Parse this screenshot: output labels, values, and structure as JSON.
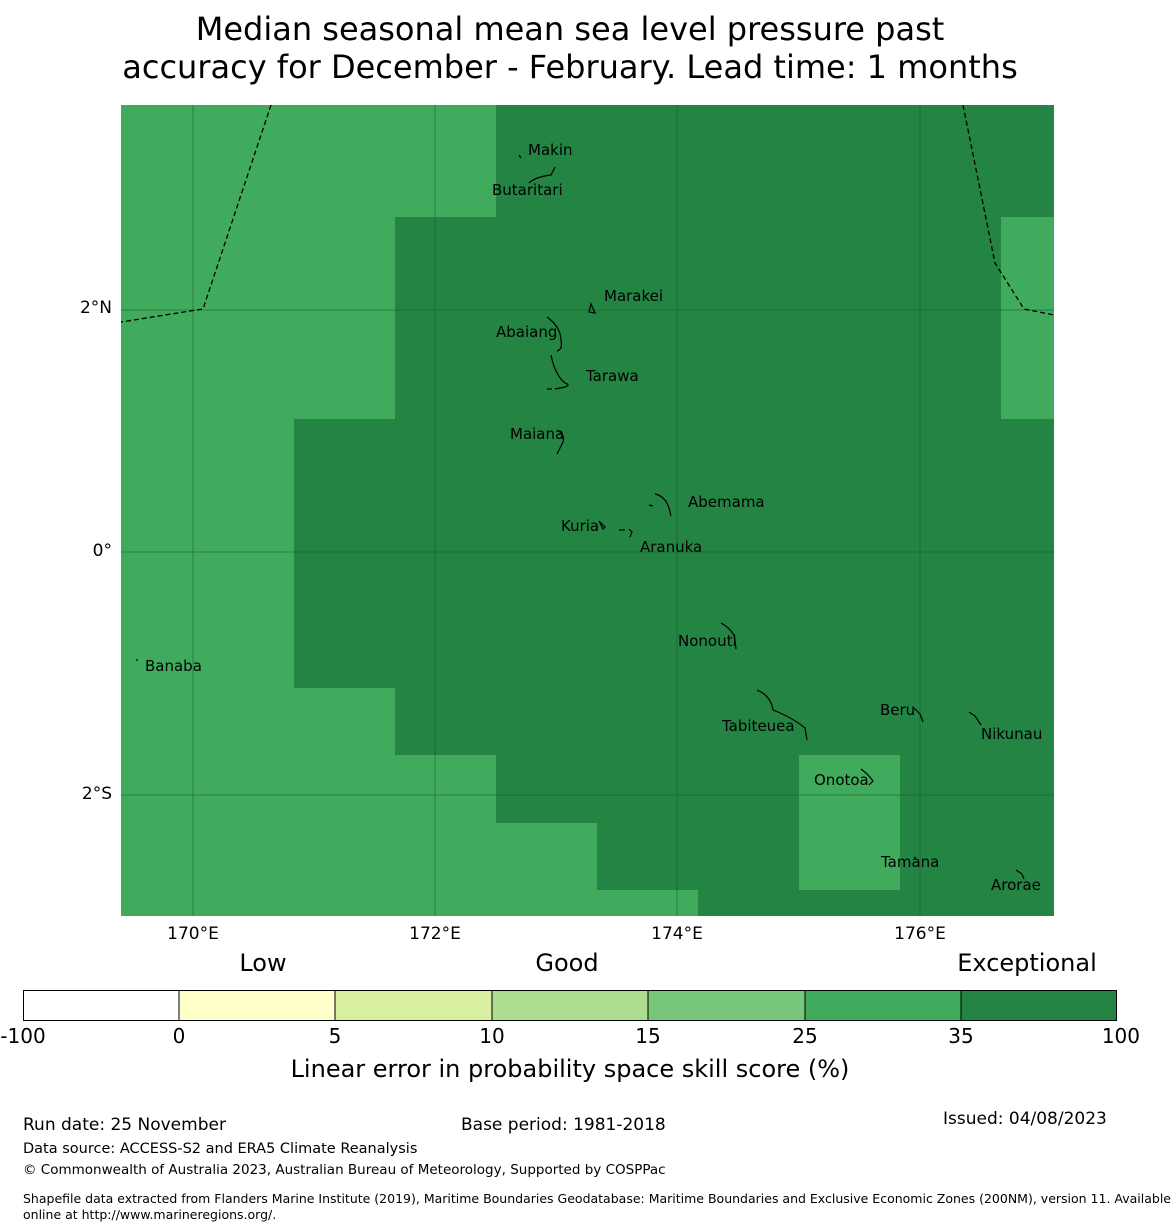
{
  "title": {
    "line1": "Median seasonal mean sea level pressure past",
    "line2": "accuracy for December - February. Lead time: 1 months"
  },
  "map": {
    "colors": {
      "good": "#41ab5d",
      "exceptional": "#238443",
      "gridline": "#1a5e30",
      "boundary": "#000000"
    },
    "lat_labels": [
      "2°N",
      "0°",
      "2°S"
    ],
    "lon_labels": [
      "170°E",
      "172°E",
      "174°E",
      "176°E"
    ],
    "places": [
      {
        "name": "Makin"
      },
      {
        "name": "Butaritari"
      },
      {
        "name": "Marakei"
      },
      {
        "name": "Abaiang"
      },
      {
        "name": "Tarawa"
      },
      {
        "name": "Maiana"
      },
      {
        "name": "Abemama"
      },
      {
        "name": "Kuria"
      },
      {
        "name": "Aranuka"
      },
      {
        "name": "Banaba"
      },
      {
        "name": "Nonouti"
      },
      {
        "name": "Beru"
      },
      {
        "name": "Tabiteuea"
      },
      {
        "name": "Nikunau"
      },
      {
        "name": "Onotoa"
      },
      {
        "name": "Tamana"
      },
      {
        "name": "Arorae"
      }
    ]
  },
  "legend": {
    "categories": [
      "Low",
      "Good",
      "Exceptional"
    ],
    "ticks": [
      "-100",
      "0",
      "5",
      "10",
      "15",
      "25",
      "35",
      "100"
    ],
    "bins": [
      {
        "range": "-100 to 0",
        "color": "#ffffff"
      },
      {
        "range": "0 to 5",
        "color": "#ffffcc"
      },
      {
        "range": "5 to 10",
        "color": "#d9f0a3"
      },
      {
        "range": "10 to 15",
        "color": "#addd8e"
      },
      {
        "range": "15 to 25",
        "color": "#78c679"
      },
      {
        "range": "25 to 35",
        "color": "#41ab5d"
      },
      {
        "range": "35 to 100",
        "color": "#238443"
      }
    ],
    "title": "Linear error in probability space skill score (%)"
  },
  "footer": {
    "run_date": "Run date: 25 November",
    "base_period": "Base period: 1981-2018",
    "issued": "Issued: 04/08/2023",
    "data_source": "Data source: ACCESS-S2 and ERA5 Climate Reanalysis",
    "copyright": "© Commonwealth of Australia 2023, Australian Bureau of Meteorology, Supported by COSPPac",
    "shapefile_line1": "Shapefile data extracted from Flanders Marine Institute (2019), Maritime Boundaries Geodatabase: Maritime Boundaries and Exclusive Economic Zones (200NM), version 11. Available",
    "shapefile_line2": "online at http://www.marineregions.org/."
  }
}
